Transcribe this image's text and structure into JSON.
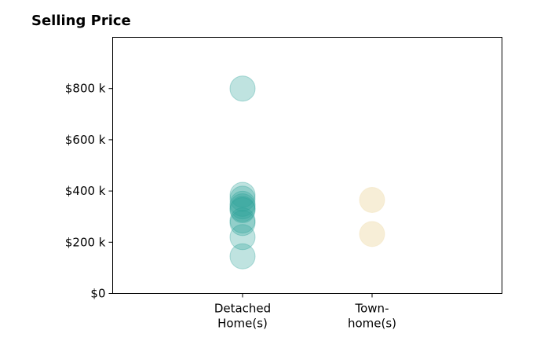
{
  "chart_data": {
    "type": "scatter",
    "title": "Selling Price",
    "xlabel": "",
    "ylabel": "",
    "ylim": [
      0,
      1000000
    ],
    "y_ticks": [
      {
        "value": 0,
        "label": "$0"
      },
      {
        "value": 200000,
        "label": "$200 k"
      },
      {
        "value": 400000,
        "label": "$400 k"
      },
      {
        "value": 600000,
        "label": "$600 k"
      },
      {
        "value": 800000,
        "label": "$800 k"
      }
    ],
    "categories": [
      {
        "lines": [
          "Detached",
          "Home(s)"
        ]
      },
      {
        "lines": [
          "Town-",
          "home(s)"
        ]
      }
    ],
    "series": [
      {
        "category_index": 0,
        "color": "#2aa198",
        "values": [
          800000,
          385000,
          370000,
          350000,
          340000,
          330000,
          325000,
          285000,
          275000,
          220000,
          145000
        ]
      },
      {
        "category_index": 1,
        "color": "#eed9a6",
        "values": [
          365000,
          232000
        ]
      }
    ],
    "grid": false,
    "legend": "none"
  }
}
